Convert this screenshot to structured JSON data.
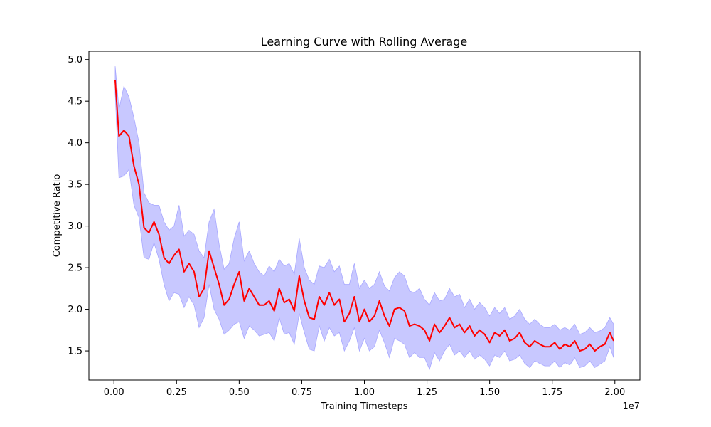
{
  "chart_data": {
    "type": "line",
    "title": "Learning Curve with Rolling Average",
    "xlabel": "Training Timesteps",
    "ylabel": "Competitive Ratio",
    "x_offset_label": "1e7",
    "xlim": [
      -0.1,
      2.1
    ],
    "ylim": [
      1.15,
      5.1
    ],
    "xticks": [
      0.0,
      0.25,
      0.5,
      0.75,
      1.0,
      1.25,
      1.5,
      1.75,
      2.0
    ],
    "xtick_labels": [
      "0.00",
      "0.25",
      "0.50",
      "0.75",
      "1.00",
      "1.25",
      "1.50",
      "1.75",
      "2.00"
    ],
    "yticks": [
      1.5,
      2.0,
      2.5,
      3.0,
      3.5,
      4.0,
      4.5,
      5.0
    ],
    "ytick_labels": [
      "1.5",
      "2.0",
      "2.5",
      "3.0",
      "3.5",
      "4.0",
      "4.5",
      "5.0"
    ],
    "grid": false,
    "legend": "none",
    "colors": {
      "mean_line": "#ff0000",
      "band_fill": "#c8c8ff",
      "band_edge": "#a8a8ff"
    },
    "series": [
      {
        "x": [
          0.005,
          0.02,
          0.04,
          0.06,
          0.08,
          0.1,
          0.12,
          0.14,
          0.16,
          0.18,
          0.2,
          0.22,
          0.24,
          0.26,
          0.28,
          0.3,
          0.32,
          0.34,
          0.36,
          0.38,
          0.4,
          0.42,
          0.44,
          0.46,
          0.48,
          0.5,
          0.52,
          0.54,
          0.56,
          0.58,
          0.6,
          0.62,
          0.64,
          0.66,
          0.68,
          0.7,
          0.72,
          0.74,
          0.76,
          0.78,
          0.8,
          0.82,
          0.84,
          0.86,
          0.88,
          0.9,
          0.92,
          0.94,
          0.96,
          0.98,
          1.0,
          1.02,
          1.04,
          1.06,
          1.08,
          1.1,
          1.12,
          1.14,
          1.16,
          1.18,
          1.2,
          1.22,
          1.24,
          1.26,
          1.28,
          1.3,
          1.32,
          1.34,
          1.36,
          1.38,
          1.4,
          1.42,
          1.44,
          1.46,
          1.48,
          1.5,
          1.52,
          1.54,
          1.56,
          1.58,
          1.6,
          1.62,
          1.64,
          1.66,
          1.68,
          1.7,
          1.72,
          1.74,
          1.76,
          1.78,
          1.8,
          1.82,
          1.84,
          1.86,
          1.88,
          1.9,
          1.92,
          1.94,
          1.96,
          1.98,
          1.995
        ],
        "mean": [
          4.75,
          4.08,
          4.15,
          4.08,
          3.72,
          3.5,
          2.98,
          2.92,
          3.05,
          2.9,
          2.62,
          2.55,
          2.65,
          2.72,
          2.45,
          2.55,
          2.45,
          2.15,
          2.25,
          2.7,
          2.5,
          2.3,
          2.05,
          2.12,
          2.3,
          2.45,
          2.1,
          2.25,
          2.15,
          2.05,
          2.05,
          2.1,
          1.98,
          2.25,
          2.08,
          2.12,
          1.98,
          2.4,
          2.1,
          1.9,
          1.88,
          2.15,
          2.05,
          2.2,
          2.05,
          2.12,
          1.85,
          1.95,
          2.15,
          1.85,
          2.0,
          1.85,
          1.92,
          2.1,
          1.92,
          1.8,
          2.0,
          2.02,
          1.98,
          1.8,
          1.82,
          1.8,
          1.75,
          1.62,
          1.82,
          1.72,
          1.8,
          1.9,
          1.78,
          1.82,
          1.72,
          1.8,
          1.68,
          1.75,
          1.7,
          1.6,
          1.72,
          1.68,
          1.75,
          1.62,
          1.65,
          1.72,
          1.6,
          1.55,
          1.62,
          1.58,
          1.55,
          1.55,
          1.6,
          1.52,
          1.58,
          1.55,
          1.62,
          1.5,
          1.52,
          1.58,
          1.5,
          1.55,
          1.58,
          1.72,
          1.62
        ],
        "upper": [
          4.92,
          4.4,
          4.68,
          4.55,
          4.3,
          4.0,
          3.4,
          3.28,
          3.25,
          3.25,
          3.05,
          2.95,
          3.0,
          3.25,
          2.88,
          2.95,
          2.9,
          2.7,
          2.62,
          3.05,
          3.2,
          2.78,
          2.48,
          2.55,
          2.85,
          3.05,
          2.58,
          2.7,
          2.55,
          2.45,
          2.4,
          2.52,
          2.45,
          2.6,
          2.52,
          2.55,
          2.42,
          2.85,
          2.5,
          2.35,
          2.3,
          2.52,
          2.5,
          2.6,
          2.45,
          2.52,
          2.3,
          2.3,
          2.55,
          2.25,
          2.35,
          2.25,
          2.3,
          2.45,
          2.28,
          2.22,
          2.38,
          2.45,
          2.4,
          2.22,
          2.2,
          2.25,
          2.12,
          2.05,
          2.2,
          2.1,
          2.12,
          2.25,
          2.15,
          2.18,
          2.02,
          2.12,
          2.0,
          2.08,
          2.02,
          1.92,
          2.02,
          1.95,
          2.02,
          1.88,
          1.92,
          2.0,
          1.88,
          1.82,
          1.88,
          1.82,
          1.78,
          1.78,
          1.82,
          1.75,
          1.78,
          1.75,
          1.82,
          1.7,
          1.72,
          1.78,
          1.72,
          1.74,
          1.78,
          1.9,
          1.82
        ],
        "lower": [
          4.6,
          3.58,
          3.6,
          3.68,
          3.25,
          3.1,
          2.62,
          2.6,
          2.8,
          2.6,
          2.3,
          2.1,
          2.2,
          2.18,
          2.02,
          2.15,
          2.05,
          1.78,
          1.9,
          2.3,
          2.0,
          1.88,
          1.7,
          1.75,
          1.82,
          1.85,
          1.65,
          1.8,
          1.75,
          1.68,
          1.7,
          1.72,
          1.62,
          1.9,
          1.7,
          1.72,
          1.58,
          1.95,
          1.72,
          1.52,
          1.5,
          1.8,
          1.62,
          1.78,
          1.68,
          1.72,
          1.5,
          1.62,
          1.78,
          1.5,
          1.65,
          1.5,
          1.55,
          1.75,
          1.6,
          1.42,
          1.65,
          1.62,
          1.58,
          1.42,
          1.48,
          1.42,
          1.42,
          1.28,
          1.48,
          1.38,
          1.5,
          1.58,
          1.45,
          1.5,
          1.42,
          1.5,
          1.4,
          1.45,
          1.4,
          1.32,
          1.45,
          1.42,
          1.5,
          1.38,
          1.4,
          1.45,
          1.35,
          1.3,
          1.38,
          1.35,
          1.32,
          1.32,
          1.38,
          1.3,
          1.36,
          1.33,
          1.42,
          1.3,
          1.32,
          1.38,
          1.3,
          1.34,
          1.38,
          1.55,
          1.42
        ]
      }
    ]
  }
}
